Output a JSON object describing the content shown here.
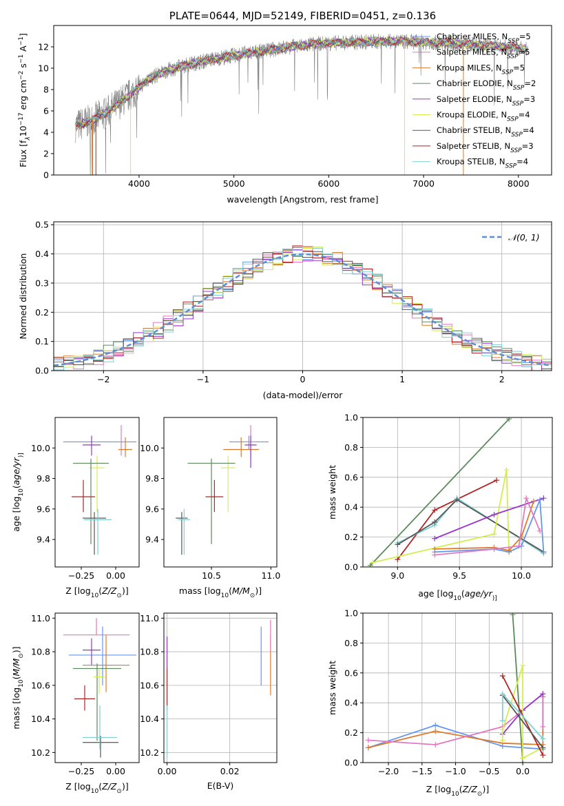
{
  "chart_data": [
    {
      "panel": "spectrum",
      "type": "line",
      "title": "PLATE=0644, MJD=52149, FIBERID=0451, z=0.136",
      "xlabel": "wavelength [Angstrom, rest frame]",
      "ylabel_parts": [
        "Flux [f",
        "λ",
        "10",
        "−17",
        " erg cm",
        "−2",
        " s",
        "−1",
        " A",
        "−1",
        "]"
      ],
      "xlim": [
        3100,
        8350
      ],
      "ylim": [
        0,
        14
      ],
      "xticks": [
        "4000",
        "5000",
        "6000",
        "7000",
        "8000"
      ],
      "yticks": [
        "0",
        "2",
        "4",
        "6",
        "8",
        "10",
        "12"
      ],
      "legend_position": "right",
      "continuum_x": [
        3330,
        3500,
        3650,
        3800,
        3950,
        4100,
        4300,
        4500,
        4750,
        5000,
        5300,
        5600,
        5900,
        6200,
        6500,
        6800,
        7100,
        7400,
        7700,
        8000,
        8100
      ],
      "continuum_y": [
        4.6,
        5.1,
        5.8,
        6.8,
        7.8,
        9.0,
        9.8,
        10.3,
        10.8,
        11.2,
        11.6,
        12.0,
        12.3,
        12.4,
        12.5,
        12.5,
        12.4,
        12.3,
        12.1,
        11.9,
        11.8
      ],
      "series": [
        {
          "name_parts": [
            "Chabrier MILES, N",
            "SSP",
            "=5"
          ],
          "color": "#6495ed"
        },
        {
          "name_parts": [
            "Salpeter MILES, N",
            "SSP",
            "=5"
          ],
          "color": "#e377c2"
        },
        {
          "name_parts": [
            "Kroupa MILES, N",
            "SSP",
            "=5"
          ],
          "color": "#dc7a2b"
        },
        {
          "name_parts": [
            "Chabrier ELODIE, N",
            "SSP",
            "=2"
          ],
          "color": "#5a8a5a"
        },
        {
          "name_parts": [
            "Salpeter ELODIE, N",
            "SSP",
            "=3"
          ],
          "color": "#9932cc"
        },
        {
          "name_parts": [
            "Kroupa ELODIE, N",
            "SSP",
            "=4"
          ],
          "color": "#d4ed4b"
        },
        {
          "name_parts": [
            "Chabrier STELIB, N",
            "SSP",
            "=4"
          ],
          "color": "#555555"
        },
        {
          "name_parts": [
            "Salpeter STELIB, N",
            "SSP",
            "=3"
          ],
          "color": "#b22222"
        },
        {
          "name_parts": [
            "Kroupa STELIB, N",
            "SSP",
            "=4"
          ],
          "color": "#7fd0d0"
        }
      ]
    },
    {
      "panel": "residual-histogram",
      "type": "line",
      "xlabel": "(data-model)/error",
      "ylabel": "Normed distribution",
      "xlim": [
        -2.5,
        2.5
      ],
      "ylim": [
        0,
        0.51
      ],
      "xticks": [
        "−2",
        "−1",
        "0",
        "1",
        "2"
      ],
      "yticks": [
        "0.0",
        "0.1",
        "0.2",
        "0.3",
        "0.4",
        "0.5"
      ],
      "grid": true,
      "legend": "𝒩(0, 1)",
      "legend_position": "top-right",
      "series": [
        {
          "name": "𝒩(0, 1)",
          "style": "dashed",
          "color": "#5b8ed6",
          "mean": 0,
          "sd": 1
        },
        {
          "color": "#6495ed",
          "jitter": 1
        },
        {
          "color": "#e377c2",
          "jitter": 2
        },
        {
          "color": "#dc7a2b",
          "jitter": 3
        },
        {
          "color": "#5a8a5a",
          "jitter": 4
        },
        {
          "color": "#9932cc",
          "jitter": 5
        },
        {
          "color": "#d4ed4b",
          "jitter": 6
        },
        {
          "color": "#555555",
          "jitter": 7
        },
        {
          "color": "#b22222",
          "jitter": 8
        },
        {
          "color": "#7fd0d0",
          "jitter": 9
        }
      ]
    },
    {
      "panel": "age-vs-Z",
      "type": "scatter",
      "xlabel_parts": [
        "Z [log",
        "10",
        "(",
        "Z/Z",
        "⊙",
        ")]"
      ],
      "ylabel_parts": [
        "age  [log",
        "10",
        "(",
        "age/yr",
        ")]"
      ],
      "xlim": [
        -0.44,
        0.17
      ],
      "ylim": [
        9.22,
        10.2
      ],
      "xticks": [
        [
          "−0.25",
          -0.25
        ],
        [
          "0.00",
          0.0
        ]
      ],
      "yticks": [
        [
          "9.4",
          9.4
        ],
        [
          "9.6",
          9.6
        ],
        [
          "9.8",
          9.8
        ],
        [
          "10.0",
          10.0
        ]
      ],
      "points": [
        {
          "color": "#6495ed",
          "x": -0.38,
          "y": 10.04,
          "x2": 0.15,
          "ylo": 10.04,
          "yhi": 10.04
        },
        {
          "color": "#e377c2",
          "x": 0.04,
          "y": 10.04,
          "x2": 0.04,
          "ylo": 9.95,
          "yhi": 10.15
        },
        {
          "color": "#dc7a2b",
          "x": 0.02,
          "y": 9.99,
          "x2": 0.12,
          "ylo": 9.94,
          "yhi": 10.07
        },
        {
          "color": "#9932cc",
          "x": -0.24,
          "y": 10.02,
          "x2": -0.11,
          "ylo": 9.95,
          "yhi": 10.08
        },
        {
          "color": "#d4ed4b",
          "x": -0.19,
          "y": 9.87,
          "x2": -0.08,
          "ylo": 9.58,
          "yhi": 9.95
        },
        {
          "color": "#5a8a5a",
          "x": -0.31,
          "y": 9.9,
          "x2": -0.05,
          "ylo": 9.37,
          "yhi": 9.93
        },
        {
          "color": "#b22222",
          "x": -0.32,
          "y": 9.68,
          "x2": -0.15,
          "ylo": 9.58,
          "yhi": 9.79
        },
        {
          "color": "#555555",
          "x": -0.24,
          "y": 9.54,
          "x2": -0.07,
          "ylo": 9.3,
          "yhi": 9.58
        },
        {
          "color": "#7fd0d0",
          "x": -0.23,
          "y": 9.53,
          "x2": -0.03,
          "ylo": 9.3,
          "yhi": 9.6
        }
      ]
    },
    {
      "panel": "age-vs-mass",
      "type": "scatter",
      "xlabel_parts": [
        "mass [log",
        "10",
        "(",
        "M/M",
        "⊙",
        ")]"
      ],
      "xlim": [
        10.1,
        11.05
      ],
      "ylim": [
        9.22,
        10.2
      ],
      "xticks": [
        [
          "10.5",
          10.5
        ],
        [
          "11.0",
          11.0
        ]
      ],
      "yticks": [
        [
          "9.4",
          9.4
        ],
        [
          "9.6",
          9.6
        ],
        [
          "9.8",
          9.8
        ],
        [
          "10.0",
          10.0
        ]
      ],
      "points": [
        {
          "color": "#6495ed",
          "x": 10.65,
          "y": 10.04,
          "x2": 10.98,
          "ylo": 9.99,
          "yhi": 10.08
        },
        {
          "color": "#e377c2",
          "x": 10.78,
          "y": 10.04,
          "x2": 10.88,
          "ylo": 9.94,
          "yhi": 10.15
        },
        {
          "color": "#dc7a2b",
          "x": 10.6,
          "y": 9.99,
          "x2": 10.9,
          "ylo": 9.94,
          "yhi": 10.07
        },
        {
          "color": "#9932cc",
          "x": 10.78,
          "y": 10.02,
          "x2": 10.88,
          "ylo": 9.87,
          "yhi": 10.08
        },
        {
          "color": "#d4ed4b",
          "x": 10.58,
          "y": 9.87,
          "x2": 10.7,
          "ylo": 9.58,
          "yhi": 9.95
        },
        {
          "color": "#5a8a5a",
          "x": 10.3,
          "y": 9.9,
          "x2": 10.7,
          "ylo": 9.37,
          "yhi": 9.93
        },
        {
          "color": "#b22222",
          "x": 10.45,
          "y": 9.68,
          "x2": 10.6,
          "ylo": 9.58,
          "yhi": 9.79
        },
        {
          "color": "#555555",
          "x": 10.2,
          "y": 9.54,
          "x2": 10.3,
          "ylo": 9.3,
          "yhi": 9.58
        },
        {
          "color": "#7fd0d0",
          "x": 10.22,
          "y": 9.53,
          "x2": 10.32,
          "ylo": 9.3,
          "yhi": 9.6
        }
      ]
    },
    {
      "panel": "weight-vs-age",
      "type": "line",
      "xlabel_parts": [
        "age  [log",
        "10",
        "(",
        "age/yr",
        ")]"
      ],
      "ylabel": "mass weight",
      "xlim": [
        8.72,
        10.25
      ],
      "ylim": [
        0,
        1
      ],
      "xticks": [
        [
          "9.0",
          9.0
        ],
        [
          "9.5",
          9.5
        ],
        [
          "10.0",
          10.0
        ]
      ],
      "yticks": [
        [
          "0.0",
          0.0
        ],
        [
          "0.2",
          0.2
        ],
        [
          "0.4",
          0.4
        ],
        [
          "0.6",
          0.6
        ],
        [
          "0.8",
          0.8
        ],
        [
          "1.0",
          1.0
        ]
      ],
      "grid": true,
      "series": [
        {
          "color": "#5a8a5a",
          "x": [
            8.78,
            9.9
          ],
          "y": [
            0.01,
            0.99
          ]
        },
        {
          "color": "#b22222",
          "x": [
            9.0,
            9.3,
            9.8
          ],
          "y": [
            0.05,
            0.38,
            0.58
          ]
        },
        {
          "color": "#7fd0d0",
          "x": [
            9.0,
            9.3,
            9.48,
            10.18
          ],
          "y": [
            0.16,
            0.28,
            0.46,
            0.09
          ]
        },
        {
          "color": "#555555",
          "x": [
            9.0,
            9.3,
            9.48,
            10.18
          ],
          "y": [
            0.15,
            0.3,
            0.45,
            0.1
          ]
        },
        {
          "color": "#d4ed4b",
          "x": [
            8.8,
            9.78,
            9.88,
            9.9
          ],
          "y": [
            0.03,
            0.22,
            0.65,
            0.1
          ]
        },
        {
          "color": "#9932cc",
          "x": [
            9.3,
            9.78,
            10.18
          ],
          "y": [
            0.19,
            0.35,
            0.46
          ]
        },
        {
          "color": "#6495ed",
          "x": [
            9.3,
            9.78,
            9.9,
            10.0,
            10.15,
            10.18
          ],
          "y": [
            0.1,
            0.12,
            0.1,
            0.14,
            0.45,
            0.1
          ]
        },
        {
          "color": "#dc7a2b",
          "x": [
            9.3,
            9.78,
            9.9,
            10.0,
            10.1
          ],
          "y": [
            0.12,
            0.13,
            0.11,
            0.2,
            0.44
          ]
        },
        {
          "color": "#e377c2",
          "x": [
            9.3,
            9.78,
            9.98,
            10.04,
            10.15
          ],
          "y": [
            0.08,
            0.12,
            0.14,
            0.46,
            0.24
          ]
        }
      ]
    },
    {
      "panel": "mass-vs-Z",
      "type": "scatter",
      "xlabel_parts": [
        "Z [log",
        "10",
        "(",
        "Z/Z",
        "⊙",
        ")]"
      ],
      "ylabel_parts": [
        "mass [log",
        "10",
        "(",
        "M/M",
        "⊙",
        ")]"
      ],
      "xlim": [
        -0.44,
        0.17
      ],
      "ylim": [
        10.14,
        11.03
      ],
      "xticks": [
        [
          "−0.25",
          -0.25
        ],
        [
          "0.00",
          0.0
        ]
      ],
      "yticks": [
        [
          "10.2",
          10.2
        ],
        [
          "10.4",
          10.4
        ],
        [
          "10.6",
          10.6
        ],
        [
          "10.8",
          10.8
        ],
        [
          "11.0",
          11.0
        ]
      ],
      "points": [
        {
          "color": "#e377c2",
          "x": -0.38,
          "y": 10.9,
          "x2": 0.1,
          "ylo": 10.9,
          "yhi": 11.0
        },
        {
          "color": "#6495ed",
          "x": -0.34,
          "y": 10.78,
          "x2": 0.15,
          "ylo": 10.6,
          "yhi": 10.95
        },
        {
          "color": "#9932cc",
          "x": -0.24,
          "y": 10.81,
          "x2": -0.11,
          "ylo": 10.72,
          "yhi": 10.88
        },
        {
          "color": "#dc7a2b",
          "x": -0.24,
          "y": 10.72,
          "x2": 0.1,
          "ylo": 10.56,
          "yhi": 10.9
        },
        {
          "color": "#5a8a5a",
          "x": -0.31,
          "y": 10.7,
          "x2": 0.04,
          "ylo": 10.27,
          "yhi": 10.73
        },
        {
          "color": "#d4ed4b",
          "x": -0.16,
          "y": 10.65,
          "x2": -0.08,
          "ylo": 10.55,
          "yhi": 10.7
        },
        {
          "color": "#b22222",
          "x": -0.3,
          "y": 10.52,
          "x2": -0.15,
          "ylo": 10.45,
          "yhi": 10.6
        },
        {
          "color": "#555555",
          "x": -0.24,
          "y": 10.26,
          "x2": 0.02,
          "ylo": 10.17,
          "yhi": 10.3
        },
        {
          "color": "#7fd0d0",
          "x": -0.24,
          "y": 10.29,
          "x2": 0.01,
          "ylo": 10.22,
          "yhi": 10.48
        }
      ]
    },
    {
      "panel": "mass-vs-EBV",
      "type": "scatter",
      "xlabel": "E(B-V)",
      "xlim": [
        -0.001,
        0.035
      ],
      "ylim": [
        10.14,
        11.03
      ],
      "xticks": [
        [
          "0.00",
          0.0
        ],
        [
          "0.02",
          0.02
        ]
      ],
      "yticks": [
        [
          "10.2",
          10.2
        ],
        [
          "10.4",
          10.4
        ],
        [
          "10.6",
          10.6
        ],
        [
          "10.8",
          10.8
        ],
        [
          "11.0",
          11.0
        ]
      ],
      "grid": true,
      "points": [
        {
          "color": "#9932cc",
          "x": 0.0,
          "y": 10.8,
          "x2": 0.0,
          "ylo": 10.7,
          "yhi": 10.89
        },
        {
          "color": "#b22222",
          "x": 0.0,
          "y": 10.6,
          "x2": 0.0,
          "ylo": 10.45,
          "yhi": 10.7
        },
        {
          "color": "#7fd0d0",
          "x": 0.0,
          "y": 10.3,
          "x2": 0.0,
          "ylo": 10.17,
          "yhi": 10.48
        },
        {
          "color": "#6495ed",
          "x": 0.03,
          "y": 10.78,
          "x2": 0.03,
          "ylo": 10.6,
          "yhi": 10.95
        },
        {
          "color": "#dc7a2b",
          "x": 0.033,
          "y": 10.72,
          "x2": 0.033,
          "ylo": 10.54,
          "yhi": 10.9
        },
        {
          "color": "#e377c2",
          "x": 0.033,
          "y": 10.9,
          "x2": 0.033,
          "ylo": 10.8,
          "yhi": 10.99
        }
      ]
    },
    {
      "panel": "weight-vs-Z",
      "type": "line",
      "xlabel_parts": [
        "Z [log",
        "10",
        "(",
        "Z/Z",
        "⊙",
        ")]"
      ],
      "ylabel": "mass weight",
      "xlim": [
        -2.38,
        0.44
      ],
      "ylim": [
        0,
        1
      ],
      "xticks": [
        [
          "−2.0",
          -2.0
        ],
        [
          "−1.5",
          -1.5
        ],
        [
          "−1.0",
          -1.0
        ],
        [
          "−0.5",
          -0.5
        ],
        [
          "0.0",
          0.0
        ]
      ],
      "yticks": [
        [
          "0.0",
          0.0
        ],
        [
          "0.2",
          0.2
        ],
        [
          "0.4",
          0.4
        ],
        [
          "0.6",
          0.6
        ],
        [
          "0.8",
          0.8
        ],
        [
          "1.0",
          1.0
        ]
      ],
      "grid": true,
      "series": [
        {
          "color": "#5a8a5a",
          "x": [
            -0.15,
            0.0
          ],
          "y": [
            0.99,
            0.0
          ]
        },
        {
          "color": "#6495ed",
          "x": [
            -2.3,
            -1.3,
            -0.3,
            0.3
          ],
          "y": [
            0.1,
            0.25,
            0.11,
            0.09
          ]
        },
        {
          "color": "#dc7a2b",
          "x": [
            -2.3,
            -1.3,
            -0.3,
            0.3,
            0.3
          ],
          "y": [
            0.1,
            0.21,
            0.13,
            0.12,
            0.44
          ]
        },
        {
          "color": "#e377c2",
          "x": [
            -2.3,
            -1.3,
            -0.3,
            0.0,
            0.3,
            0.3
          ],
          "y": [
            0.15,
            0.12,
            0.24,
            0.35,
            0.46,
            0.24
          ]
        },
        {
          "color": "#9932cc",
          "x": [
            -0.3,
            0.0,
            0.3
          ],
          "y": [
            0.19,
            0.35,
            0.46
          ]
        },
        {
          "color": "#d4ed4b",
          "x": [
            -0.3,
            -0.3,
            0.0,
            0.0,
            0.3
          ],
          "y": [
            0.15,
            0.22,
            0.65,
            0.03,
            0.1
          ]
        },
        {
          "color": "#b22222",
          "x": [
            -0.3,
            0.3
          ],
          "y": [
            0.58,
            0.05
          ]
        },
        {
          "color": "#555555",
          "x": [
            -0.3,
            0.3
          ],
          "y": [
            0.45,
            0.1
          ]
        },
        {
          "color": "#7fd0d0",
          "x": [
            -0.3,
            -0.3,
            0.3
          ],
          "y": [
            0.28,
            0.46,
            0.16
          ]
        }
      ]
    }
  ]
}
